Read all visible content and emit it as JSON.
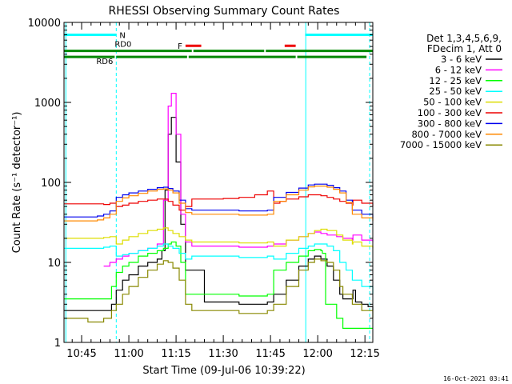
{
  "chart_data": {
    "type": "line",
    "title": "RHESSI Observing Summary Count Rates",
    "xlabel": "Start Time (09-Jul-06 10:39:22)",
    "ylabel": "Count Rate (s⁻¹ detector⁻¹)",
    "yscale": "log",
    "xlim": [
      39.4,
      137.5
    ],
    "ylim": [
      1,
      10000
    ],
    "x_units": "minutes after 10:00 UT",
    "x_tick_values": [
      45,
      60,
      75,
      90,
      105,
      120,
      135
    ],
    "x_tick_labels": [
      "10:45",
      "11:00",
      "11:15",
      "11:30",
      "11:45",
      "12:00",
      "12:15"
    ],
    "y_tick_values": [
      1,
      10,
      100,
      1000,
      10000
    ],
    "y_tick_labels": [
      "1",
      "10",
      "100",
      "1000",
      "10000"
    ],
    "grid": false,
    "legend_placement": "right",
    "legend_header": [
      "Det 1,3,4,5,6,9,",
      "FDecim 1, Att 0"
    ],
    "series": [
      {
        "name": "3 - 6 keV",
        "color": "#000000",
        "x": [
          39.5,
          52,
          54.5,
          56,
          58,
          60,
          63,
          66,
          69,
          70.5,
          71.5,
          72.5,
          73.5,
          75,
          76.5,
          78,
          84,
          95,
          104,
          106,
          110,
          114,
          117,
          119,
          121,
          123,
          125,
          127,
          128,
          131,
          131.2,
          132,
          134,
          136,
          137.5
        ],
        "y": [
          2.5,
          2.5,
          3,
          4.5,
          6,
          7,
          9,
          10,
          11,
          14,
          80,
          400,
          650,
          180,
          30,
          8,
          3.2,
          3,
          3.2,
          4,
          6,
          9,
          11,
          12,
          11,
          9,
          6,
          4,
          3.5,
          3.5,
          4.5,
          3.2,
          3,
          2.8,
          2.5
        ]
      },
      {
        "name": "6 - 12 keV",
        "color": "#ff00ff",
        "x": [
          52,
          54,
          56,
          58,
          60,
          63,
          66,
          69,
          71,
          72.5,
          73.5,
          75,
          76.5,
          78,
          80,
          95,
          104,
          106,
          110,
          114,
          117,
          119,
          121,
          123,
          126,
          128,
          131,
          131.2,
          134,
          137.5
        ],
        "y": [
          9,
          10,
          11,
          12,
          13,
          14,
          15,
          17,
          60,
          900,
          1300,
          400,
          40,
          18,
          16,
          15.5,
          16,
          17,
          19,
          21,
          23,
          24,
          23,
          22,
          21,
          20,
          19,
          22,
          19,
          18
        ]
      },
      {
        "name": "12 - 25 keV",
        "color": "#00ff00",
        "x": [
          39.5,
          48,
          52,
          54.5,
          56,
          58,
          60,
          63,
          66,
          69,
          71,
          72.5,
          73.5,
          75,
          76.5,
          78,
          80,
          95,
          104,
          106,
          110,
          114,
          117,
          119,
          121,
          121.5,
          122.5,
          124,
          126,
          128,
          131,
          134,
          137.5
        ],
        "y": [
          3.5,
          3.5,
          3.5,
          5,
          7.5,
          9,
          10,
          12,
          13,
          14,
          15,
          17,
          18,
          16,
          10,
          4,
          4,
          3.8,
          4,
          8,
          10,
          12,
          14,
          14.5,
          14,
          13,
          3,
          3,
          2,
          1.5,
          1.5,
          1.5,
          1.5
        ]
      },
      {
        "name": "25 - 50 keV",
        "color": "#00ffff",
        "x": [
          39.5,
          52,
          54,
          56,
          58,
          60,
          63,
          66,
          69,
          71,
          72.5,
          74,
          76,
          78,
          80,
          95,
          104,
          106,
          110,
          114,
          117,
          119,
          121,
          123,
          125,
          127,
          129,
          131,
          134,
          137.5
        ],
        "y": [
          15,
          15.5,
          16,
          12,
          12.5,
          13,
          14,
          15,
          16,
          17,
          16,
          15,
          13,
          11,
          12,
          11.5,
          12,
          11,
          13,
          15,
          16,
          17,
          17,
          16,
          14,
          10,
          8,
          6,
          5,
          4
        ]
      },
      {
        "name": "50 - 100 keV",
        "color": "#dddd00",
        "x": [
          39.5,
          52,
          54,
          56,
          58,
          60,
          63,
          66,
          69,
          71,
          72.5,
          74,
          76,
          78,
          80,
          95,
          104,
          106,
          110,
          114,
          117,
          119,
          121,
          123,
          126,
          128,
          131,
          131.2,
          134,
          137.5
        ],
        "y": [
          20,
          20.5,
          21,
          17,
          19,
          21,
          23,
          25,
          26,
          27,
          25,
          23,
          21,
          19,
          18,
          17.5,
          18,
          16,
          19,
          21,
          23,
          25,
          26,
          25,
          22,
          19,
          17,
          18,
          16,
          15
        ]
      },
      {
        "name": "100 - 300 keV",
        "color": "#ee0000",
        "x": [
          39.5,
          46,
          50,
          52,
          54,
          56,
          58,
          60,
          63,
          66,
          69,
          71,
          72.5,
          74,
          76,
          78,
          80,
          85,
          90,
          95,
          100,
          104,
          106,
          108,
          110,
          114,
          117,
          119,
          121,
          123,
          125,
          127,
          129,
          131,
          131.2,
          134,
          137.5
        ],
        "y": [
          54,
          54,
          54,
          53,
          55,
          50,
          52,
          55,
          58,
          60,
          62,
          62,
          58,
          52,
          45,
          50,
          62,
          62,
          63,
          65,
          70,
          78,
          55,
          58,
          62,
          66,
          70,
          70,
          68,
          65,
          62,
          58,
          55,
          52,
          60,
          55,
          50
        ]
      },
      {
        "name": "300 - 800 keV",
        "color": "#0000ee",
        "x": [
          39.5,
          46,
          50,
          52,
          54,
          56,
          58,
          60,
          63,
          66,
          69,
          71,
          72.5,
          74,
          76,
          78,
          80,
          95,
          104,
          106,
          110,
          114,
          117,
          119,
          121,
          123,
          125,
          127,
          129,
          131,
          134,
          137.5
        ],
        "y": [
          37,
          37,
          38,
          40,
          44,
          65,
          70,
          74,
          78,
          82,
          86,
          87,
          84,
          78,
          60,
          47,
          45,
          44,
          45,
          65,
          75,
          85,
          93,
          95,
          95,
          92,
          86,
          78,
          60,
          45,
          40,
          36
        ]
      },
      {
        "name": "800 - 7000 keV",
        "color": "#ff8800",
        "x": [
          39.5,
          46,
          50,
          52,
          54,
          56,
          58,
          60,
          63,
          66,
          69,
          71,
          72.5,
          74,
          76,
          78,
          80,
          95,
          104,
          106,
          110,
          114,
          117,
          119,
          121,
          123,
          125,
          127,
          129,
          131,
          134,
          137.5
        ],
        "y": [
          33,
          33,
          34,
          36,
          40,
          58,
          64,
          68,
          73,
          78,
          82,
          83,
          80,
          74,
          55,
          42,
          40,
          39,
          40,
          58,
          70,
          80,
          88,
          90,
          90,
          87,
          82,
          74,
          56,
          40,
          36,
          33
        ]
      },
      {
        "name": "7000 - 15000 keV",
        "color": "#888800",
        "x": [
          39.5,
          47,
          52,
          54.5,
          56,
          58,
          60,
          63,
          66,
          69,
          71,
          72.5,
          74,
          76,
          78,
          80,
          95,
          104,
          106,
          110,
          114,
          117,
          119,
          121,
          123,
          125,
          127,
          128,
          131,
          134,
          137.5
        ],
        "y": [
          2,
          1.8,
          2,
          2.5,
          3,
          4,
          5,
          6.5,
          8,
          9.5,
          10.5,
          10,
          8.5,
          6,
          3,
          2.5,
          2.3,
          2.5,
          3,
          5,
          8,
          10,
          11,
          10.5,
          10,
          8,
          5,
          4,
          3,
          2.5,
          2
        ]
      }
    ],
    "state_bars": [
      {
        "label": "N",
        "color": "#00ffff",
        "y": 7000,
        "segments": [
          [
            39.5,
            56
          ],
          [
            116,
            137.5
          ]
        ]
      },
      {
        "label": "F",
        "color": "#ee0000",
        "y": 5100,
        "segments": [
          [
            78,
            83
          ],
          [
            109.5,
            113
          ]
        ]
      },
      {
        "label": "RD0",
        "color": "#008800",
        "y": 4400,
        "segments": [
          [
            39.5,
            80
          ],
          [
            80.5,
            103
          ],
          [
            103.5,
            137.5
          ]
        ]
      },
      {
        "label": "RD6",
        "color": "#008800",
        "y": 3700,
        "segments": [
          [
            39.5,
            55.5
          ],
          [
            56,
            78.5
          ],
          [
            79,
            113
          ],
          [
            113.5,
            135.5
          ]
        ]
      }
    ],
    "vertical_markers": [
      {
        "x": 40,
        "color": "#00ffff",
        "style": "solid"
      },
      {
        "x": 56,
        "color": "#00ffff",
        "style": "dashed"
      },
      {
        "x": 116.2,
        "color": "#00ffff",
        "style": "solid"
      },
      {
        "x": 136.5,
        "color": "#00ffff",
        "style": "dashed"
      }
    ],
    "timestamp": "16-Oct-2021 03:41"
  }
}
